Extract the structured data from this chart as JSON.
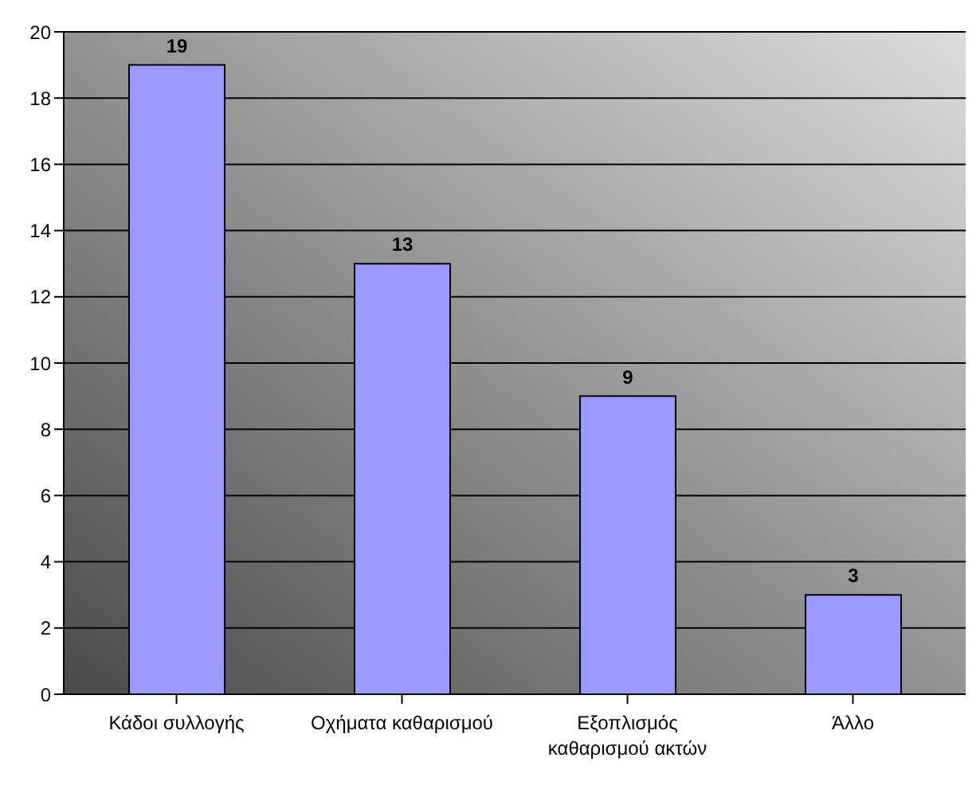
{
  "chart_data": {
    "type": "bar",
    "categories": [
      "Κάδοι συλλογής",
      "Οχήματα καθαρισμού",
      "Εξοπλισμός καθαρισμού ακτών",
      "Άλλο"
    ],
    "values": [
      19,
      13,
      9,
      3
    ],
    "color": "#9999ff",
    "ylim": [
      0,
      20
    ],
    "yticks": [
      0,
      2,
      4,
      6,
      8,
      10,
      12,
      14,
      16,
      18,
      20
    ],
    "grid": "y",
    "data_labels": true
  }
}
